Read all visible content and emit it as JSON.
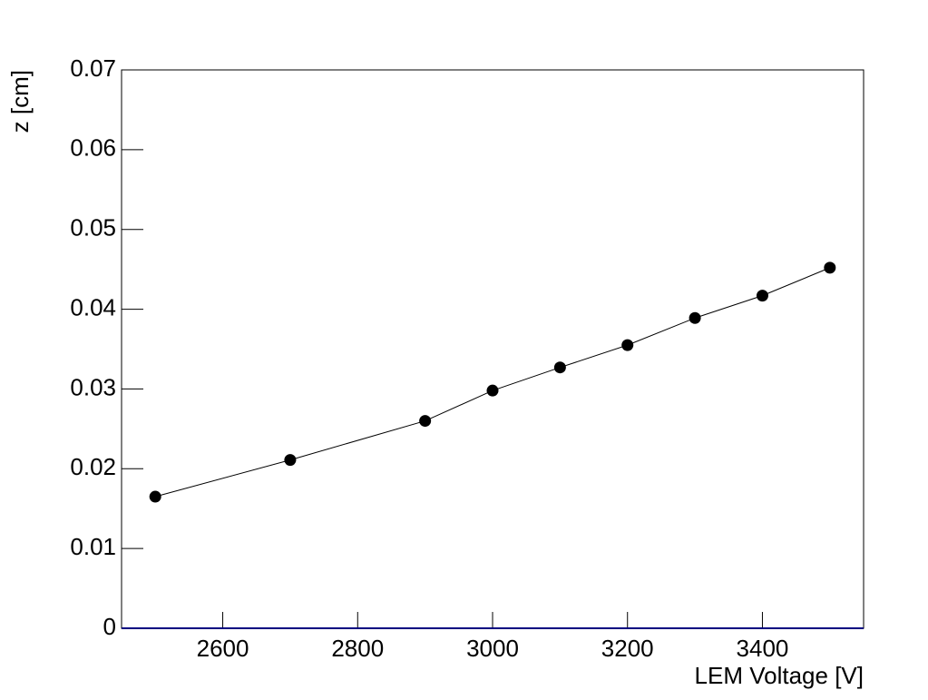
{
  "chart_data": {
    "type": "line",
    "x_label": "LEM Voltage [V]",
    "y_label": "z [cm]",
    "x": [
      2500,
      2700,
      2900,
      3000,
      3100,
      3200,
      3300,
      3400,
      3500
    ],
    "values": [
      0.0165,
      0.0211,
      0.026,
      0.0298,
      0.0327,
      0.0355,
      0.0389,
      0.0417,
      0.0452
    ],
    "color": "#000000",
    "xlim": [
      2450,
      3550
    ],
    "xticks": [
      2600,
      2800,
      3000,
      3200,
      3400
    ],
    "ylim": [
      0,
      0.07
    ],
    "yticks": [
      0,
      0.01,
      0.02,
      0.03,
      0.04,
      0.05,
      0.06,
      0.07
    ],
    "grid": false
  }
}
